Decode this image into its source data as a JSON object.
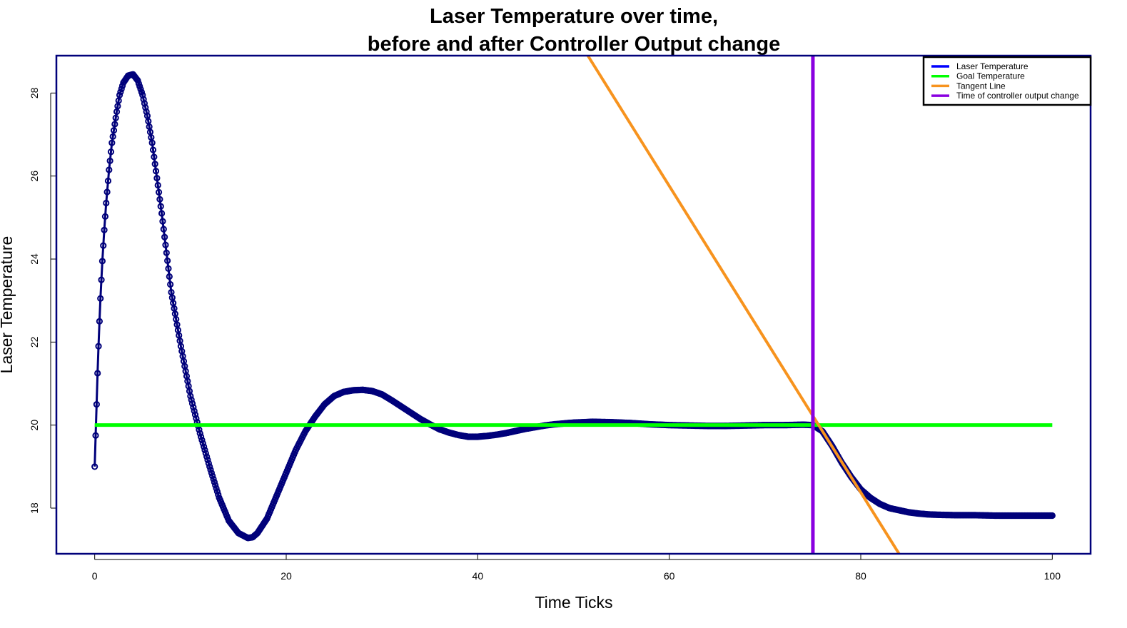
{
  "chart_data": {
    "type": "line",
    "title_line1": "Laser Temperature over time,",
    "title_line2": "before and after Controller Output change",
    "xlabel": "Time Ticks",
    "ylabel": "Laser Temperature",
    "xlim": [
      -4,
      104
    ],
    "ylim": [
      16.9,
      28.9
    ],
    "x_ticks": [
      0,
      20,
      40,
      60,
      80,
      100
    ],
    "y_ticks": [
      18,
      20,
      22,
      24,
      26,
      28
    ],
    "grid": false,
    "legend_position": "top-right",
    "colors": {
      "frame": "#00007a",
      "laser_points": "#00007a",
      "laser_legend": "#0000ff",
      "goal": "#00ff00",
      "tangent": "#f7931e",
      "change": "#8a00e0"
    },
    "legend": [
      {
        "label": "Laser Temperature",
        "color": "#0000ff"
      },
      {
        "label": "Goal Temperature",
        "color": "#00ff00"
      },
      {
        "label": "Tangent Line",
        "color": "#f7931e"
      },
      {
        "label": "Time of controller output change",
        "color": "#8a00e0"
      }
    ],
    "series": [
      {
        "name": "Laser Temperature",
        "type": "line+points",
        "x": [
          0,
          0.1,
          0.2,
          0.3,
          0.4,
          0.5,
          0.6,
          0.8,
          1,
          1.2,
          1.5,
          1.8,
          2,
          2.3,
          2.6,
          3,
          3.5,
          4,
          4.5,
          5,
          5.5,
          6,
          7,
          8,
          9,
          10,
          11,
          12,
          13,
          14,
          15,
          16,
          16.5,
          17,
          18,
          19,
          20,
          21,
          22,
          23,
          24,
          25,
          26,
          27,
          28,
          29,
          30,
          31,
          32,
          33,
          34,
          35,
          36,
          37,
          38,
          39,
          40,
          41,
          42,
          43,
          44,
          45,
          46,
          47,
          48,
          49,
          50,
          52,
          54,
          56,
          58,
          60,
          62,
          64,
          66,
          68,
          70,
          72,
          74,
          75,
          76,
          77,
          78,
          79,
          80,
          81,
          82,
          83,
          84,
          85,
          86,
          87,
          88,
          90,
          92,
          94,
          96,
          98,
          100
        ],
        "y": [
          19.0,
          19.75,
          20.5,
          21.25,
          21.9,
          22.5,
          23.05,
          23.95,
          24.7,
          25.35,
          26.15,
          26.8,
          27.1,
          27.55,
          27.95,
          28.25,
          28.42,
          28.45,
          28.3,
          27.95,
          27.45,
          26.8,
          25.1,
          23.2,
          21.9,
          20.7,
          19.8,
          19.0,
          18.25,
          17.7,
          17.4,
          17.28,
          17.3,
          17.4,
          17.75,
          18.3,
          18.85,
          19.4,
          19.85,
          20.2,
          20.5,
          20.7,
          20.8,
          20.84,
          20.85,
          20.82,
          20.74,
          20.6,
          20.45,
          20.3,
          20.15,
          20.02,
          19.9,
          19.82,
          19.76,
          19.72,
          19.72,
          19.74,
          19.77,
          19.81,
          19.86,
          19.91,
          19.95,
          19.99,
          20.02,
          20.04,
          20.06,
          20.08,
          20.07,
          20.05,
          20.02,
          20.0,
          19.99,
          19.98,
          19.98,
          19.99,
          20.0,
          20.0,
          20.01,
          20.0,
          19.85,
          19.5,
          19.1,
          18.75,
          18.45,
          18.25,
          18.1,
          18.0,
          17.95,
          17.9,
          17.87,
          17.85,
          17.84,
          17.83,
          17.83,
          17.82,
          17.82,
          17.82,
          17.82
        ]
      },
      {
        "name": "Goal Temperature",
        "type": "line",
        "x": [
          0,
          100
        ],
        "y": [
          20,
          20
        ]
      },
      {
        "name": "Tangent Line",
        "type": "line",
        "x": [
          51.5,
          84
        ],
        "y": [
          28.9,
          16.9
        ]
      },
      {
        "name": "Time of controller output change",
        "type": "vline",
        "x": 75
      }
    ]
  }
}
